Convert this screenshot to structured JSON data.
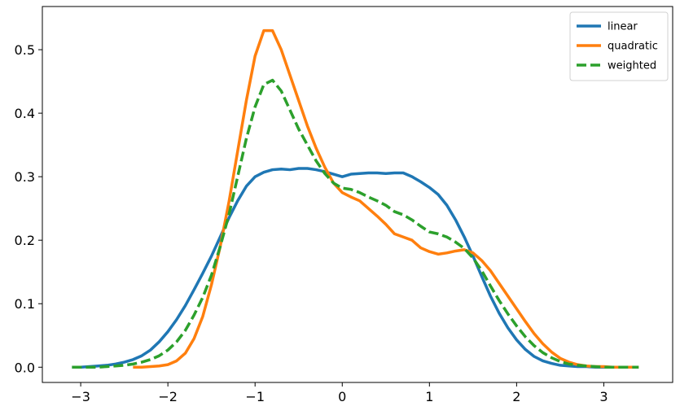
{
  "chart_data": {
    "type": "line",
    "x": [
      -3.1,
      -3.0,
      -2.9,
      -2.8,
      -2.7,
      -2.6,
      -2.5,
      -2.4,
      -2.3,
      -2.2,
      -2.1,
      -2.0,
      -1.9,
      -1.8,
      -1.7,
      -1.6,
      -1.5,
      -1.4,
      -1.3,
      -1.2,
      -1.1,
      -1.0,
      -0.9,
      -0.8,
      -0.7,
      -0.6,
      -0.5,
      -0.4,
      -0.3,
      -0.2,
      -0.1,
      0.0,
      0.1,
      0.2,
      0.3,
      0.4,
      0.5,
      0.6,
      0.7,
      0.8,
      0.9,
      1.0,
      1.1,
      1.2,
      1.3,
      1.4,
      1.5,
      1.6,
      1.7,
      1.8,
      1.9,
      2.0,
      2.1,
      2.2,
      2.3,
      2.4,
      2.5,
      2.6,
      2.7,
      2.8,
      2.9,
      3.0,
      3.1,
      3.2,
      3.3,
      3.4
    ],
    "series": [
      {
        "name": "linear",
        "color": "#1f77b4",
        "linestyle": "solid",
        "values": [
          0,
          0,
          0.001,
          0.002,
          0.003,
          0.005,
          0.008,
          0.012,
          0.018,
          0.027,
          0.04,
          0.056,
          0.075,
          0.097,
          0.122,
          0.148,
          0.175,
          0.205,
          0.235,
          0.262,
          0.285,
          0.3,
          0.307,
          0.311,
          0.312,
          0.311,
          0.313,
          0.313,
          0.311,
          0.308,
          0.304,
          0.3,
          0.304,
          0.305,
          0.306,
          0.306,
          0.305,
          0.306,
          0.306,
          0.3,
          0.292,
          0.283,
          0.272,
          0.255,
          0.232,
          0.205,
          0.175,
          0.143,
          0.112,
          0.085,
          0.062,
          0.043,
          0.028,
          0.017,
          0.01,
          0.006,
          0.003,
          0.002,
          0.001,
          0.001,
          0,
          0,
          0,
          0,
          null,
          null
        ]
      },
      {
        "name": "quadratic",
        "color": "#ff7f0e",
        "linestyle": "solid",
        "values": [
          null,
          null,
          null,
          null,
          null,
          null,
          null,
          0,
          0,
          0.001,
          0.002,
          0.004,
          0.01,
          0.022,
          0.045,
          0.08,
          0.13,
          0.19,
          0.26,
          0.34,
          0.42,
          0.49,
          0.53,
          0.53,
          0.5,
          0.46,
          0.42,
          0.38,
          0.345,
          0.315,
          0.29,
          0.275,
          0.268,
          0.262,
          0.25,
          0.238,
          0.225,
          0.21,
          0.205,
          0.2,
          0.188,
          0.182,
          0.178,
          0.18,
          0.183,
          0.185,
          0.18,
          0.168,
          0.152,
          0.132,
          0.112,
          0.092,
          0.072,
          0.053,
          0.037,
          0.024,
          0.014,
          0.008,
          0.004,
          0.002,
          0.001,
          0.001,
          0,
          0,
          0,
          0
        ]
      },
      {
        "name": "weighted",
        "color": "#2ca02c",
        "linestyle": "dashed",
        "values": [
          0,
          0,
          0,
          0,
          0.001,
          0.002,
          0.003,
          0.005,
          0.008,
          0.012,
          0.018,
          0.027,
          0.04,
          0.058,
          0.082,
          0.11,
          0.145,
          0.19,
          0.24,
          0.3,
          0.36,
          0.41,
          0.445,
          0.452,
          0.435,
          0.405,
          0.375,
          0.35,
          0.325,
          0.305,
          0.29,
          0.282,
          0.28,
          0.275,
          0.268,
          0.262,
          0.255,
          0.245,
          0.24,
          0.232,
          0.222,
          0.213,
          0.21,
          0.205,
          0.197,
          0.187,
          0.172,
          0.152,
          0.128,
          0.105,
          0.084,
          0.065,
          0.048,
          0.034,
          0.023,
          0.015,
          0.009,
          0.005,
          0.003,
          0.002,
          0.001,
          0,
          0,
          0,
          0,
          0
        ]
      }
    ],
    "xlim": [
      -3.44,
      3.79
    ],
    "ylim": [
      -0.024,
      0.568
    ],
    "xticks": [
      {
        "value": -3,
        "label": "−3"
      },
      {
        "value": -2,
        "label": "−2"
      },
      {
        "value": -1,
        "label": "−1"
      },
      0,
      1,
      2,
      3
    ],
    "yticks": [
      {
        "value": 0,
        "label": "0.0"
      },
      0.1,
      0.2,
      0.3,
      0.4,
      0.5
    ],
    "grid": false,
    "legend": "upper right"
  }
}
